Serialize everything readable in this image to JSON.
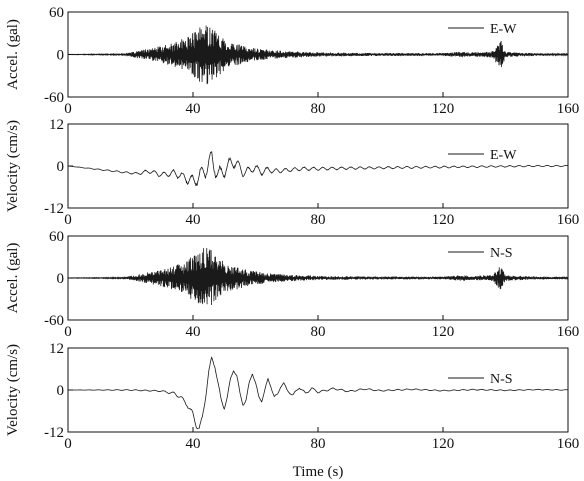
{
  "chart_data": [
    {
      "type": "line",
      "component": "E-W",
      "ylabel": "Accel. (gal)",
      "ylim": [
        -60,
        60
      ],
      "xlim": [
        0,
        160
      ],
      "yticks": [
        60,
        0,
        -60
      ],
      "xticks": [
        0,
        40,
        80,
        120,
        160
      ],
      "legend": "E-W",
      "series": [
        {
          "name": "E-W",
          "envelope": [
            [
              0,
              0.3
            ],
            [
              18,
              0.8
            ],
            [
              22,
              5
            ],
            [
              28,
              10
            ],
            [
              34,
              17
            ],
            [
              38,
              25
            ],
            [
              42,
              38
            ],
            [
              44,
              45
            ],
            [
              46,
              42
            ],
            [
              48,
              30
            ],
            [
              52,
              18
            ],
            [
              58,
              10
            ],
            [
              66,
              6
            ],
            [
              80,
              3
            ],
            [
              100,
              2
            ],
            [
              120,
              2
            ],
            [
              126,
              4
            ],
            [
              130,
              3
            ],
            [
              136,
              5
            ],
            [
              138.5,
              22
            ],
            [
              140,
              4
            ],
            [
              150,
              2
            ],
            [
              160,
              1
            ]
          ]
        }
      ]
    },
    {
      "type": "line",
      "component": "E-W",
      "ylabel": "Velocity (cm/s)",
      "ylim": [
        -12,
        12
      ],
      "xlim": [
        0,
        160
      ],
      "yticks": [
        12,
        0,
        -12
      ],
      "xticks": [
        0,
        40,
        80,
        120,
        160
      ],
      "legend": "E-W",
      "series": [
        {
          "name": "E-W",
          "x": [
            0,
            10,
            18,
            22,
            26,
            30,
            34,
            38,
            40,
            42,
            44,
            46,
            48,
            50,
            52,
            54,
            56,
            58,
            60,
            62,
            64,
            66,
            70,
            75,
            80,
            90,
            100,
            110,
            120,
            130,
            140,
            150,
            160
          ],
          "y": [
            0,
            -1,
            -1.8,
            -2.2,
            -1.5,
            -2.5,
            -2,
            -3.5,
            -4.5,
            -3,
            -1,
            2,
            -2.5,
            -1.5,
            1,
            0.8,
            -2,
            -1.2,
            -0.5,
            -1.8,
            -1,
            -1.5,
            -1.2,
            -0.8,
            -0.8,
            -0.6,
            -0.5,
            -0.4,
            -0.3,
            -0.2,
            -0.1,
            0,
            0
          ],
          "osc": [
            [
              0,
              0
            ],
            [
              20,
              0.3
            ],
            [
              36,
              1.2
            ],
            [
              42,
              2.5
            ],
            [
              46,
              3
            ],
            [
              50,
              2
            ],
            [
              56,
              1.2
            ],
            [
              70,
              0.6
            ],
            [
              90,
              0.4
            ],
            [
              120,
              0.3
            ],
            [
              160,
              0.2
            ]
          ]
        }
      ]
    },
    {
      "type": "line",
      "component": "N-S",
      "ylabel": "Accel. (gal)",
      "ylim": [
        -60,
        60
      ],
      "xlim": [
        0,
        160
      ],
      "yticks": [
        60,
        0,
        -60
      ],
      "xticks": [
        0,
        40,
        80,
        120,
        160
      ],
      "legend": "N-S",
      "series": [
        {
          "name": "N-S",
          "envelope": [
            [
              0,
              0.3
            ],
            [
              18,
              0.8
            ],
            [
              22,
              5
            ],
            [
              28,
              10
            ],
            [
              34,
              17
            ],
            [
              38,
              26
            ],
            [
              42,
              38
            ],
            [
              44,
              45
            ],
            [
              46,
              40
            ],
            [
              48,
              28
            ],
            [
              52,
              20
            ],
            [
              58,
              11
            ],
            [
              66,
              6
            ],
            [
              80,
              3
            ],
            [
              100,
              2
            ],
            [
              120,
              2
            ],
            [
              126,
              4
            ],
            [
              130,
              3
            ],
            [
              136,
              5
            ],
            [
              138.5,
              18
            ],
            [
              140,
              4
            ],
            [
              150,
              2
            ],
            [
              160,
              1
            ]
          ]
        }
      ]
    },
    {
      "type": "line",
      "component": "N-S",
      "ylabel": "Velocity (cm/s)",
      "ylim": [
        -12,
        12
      ],
      "xlim": [
        0,
        160
      ],
      "yticks": [
        12,
        0,
        -12
      ],
      "xticks": [
        0,
        40,
        80,
        120,
        160
      ],
      "xlabel": "Time (s)",
      "legend": "N-S",
      "series": [
        {
          "name": "N-S",
          "x": [
            0,
            20,
            30,
            34,
            36,
            38,
            40,
            41,
            42,
            43,
            44,
            45,
            46,
            47,
            48,
            49,
            50,
            51,
            52,
            53,
            54,
            55,
            56,
            57,
            58,
            59,
            60,
            61,
            62,
            63,
            64,
            65,
            66,
            67,
            68,
            69,
            70,
            72,
            74,
            76,
            78,
            80,
            85,
            90,
            95,
            100,
            110,
            120,
            130,
            140,
            150,
            160
          ],
          "y": [
            0,
            0,
            -0.3,
            -1,
            -2,
            -4,
            -7,
            -10,
            -11,
            -8,
            -2,
            5,
            9,
            7,
            2,
            -3,
            -5,
            -2,
            3,
            6,
            4,
            -1,
            -4,
            -3,
            2,
            5,
            2,
            -2,
            -3,
            0,
            3,
            1,
            -2,
            -1.5,
            1,
            2,
            0,
            -1.5,
            0.8,
            -1,
            0.5,
            -0.6,
            0.4,
            -0.4,
            0.3,
            -0.2,
            0.2,
            -0.2,
            0.1,
            -0.1,
            0.1,
            0
          ],
          "osc": [
            [
              0,
              0
            ],
            [
              30,
              0.2
            ],
            [
              40,
              0.8
            ],
            [
              50,
              0.6
            ],
            [
              70,
              0.4
            ],
            [
              100,
              0.2
            ],
            [
              160,
              0.1
            ]
          ]
        }
      ]
    }
  ]
}
